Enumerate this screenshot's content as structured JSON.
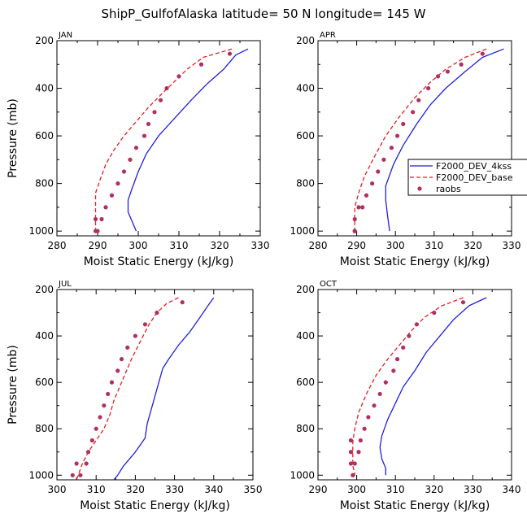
{
  "title": "ShipP_GulfofAlaska  latitude= 50 N longitude= 145 W",
  "legend": {
    "entries": [
      {
        "label": "F2000_DEV_4kss",
        "style": "solid",
        "color": "#1f1fe6"
      },
      {
        "label": "F2000_DEV_base",
        "style": "dashed",
        "color": "#e61f1f"
      },
      {
        "label": "raobs",
        "style": "dots",
        "color": "#b03060"
      }
    ]
  },
  "chart_data": [
    {
      "type": "line",
      "panel": "JAN",
      "xlabel": "Moist Static Energy (kJ/kg)",
      "ylabel": "Pressure (mb)",
      "xlim": [
        280,
        330
      ],
      "ylim": [
        1020,
        200
      ],
      "xticks": [
        280,
        290,
        300,
        310,
        320,
        330
      ],
      "yticks": [
        200,
        400,
        600,
        800,
        1000
      ],
      "series": [
        {
          "name": "F2000_DEV_4kss",
          "style": "solid",
          "x": [
            327,
            324,
            321,
            317,
            313,
            309,
            305,
            302,
            300,
            298.5,
            297.5,
            297.5,
            298.5,
            299.5
          ],
          "y": [
            235,
            260,
            320,
            380,
            450,
            525,
            600,
            675,
            750,
            820,
            870,
            920,
            960,
            1000
          ]
        },
        {
          "name": "F2000_DEV_base",
          "style": "dashed",
          "x": [
            323,
            316,
            312,
            309,
            306,
            302.5,
            299.5,
            296.5,
            294,
            292,
            290.5,
            289.5,
            289.5,
            289.5,
            289.5
          ],
          "y": [
            235,
            270,
            320,
            370,
            420,
            480,
            540,
            600,
            660,
            720,
            790,
            840,
            900,
            960,
            1000
          ]
        },
        {
          "name": "raobs",
          "style": "dots",
          "x": [
            322.5,
            315.5,
            310,
            307,
            305.5,
            304,
            302.5,
            301.5,
            299.5,
            298,
            296.5,
            295,
            293.5,
            292,
            291,
            290,
            289.5,
            289.5
          ],
          "y": [
            255,
            300,
            350,
            400,
            450,
            500,
            550,
            600,
            650,
            700,
            750,
            800,
            850,
            900,
            950,
            1000,
            950,
            1000
          ]
        }
      ]
    },
    {
      "type": "line",
      "panel": "APR",
      "xlabel": "Moist Static Energy (kJ/kg)",
      "ylabel": "",
      "xlim": [
        280,
        330
      ],
      "ylim": [
        1020,
        200
      ],
      "xticks": [
        280,
        290,
        300,
        310,
        320,
        330
      ],
      "yticks": [
        200,
        400,
        600,
        800,
        1000
      ],
      "series": [
        {
          "name": "F2000_DEV_4kss",
          "style": "solid",
          "x": [
            328,
            322.5,
            318,
            313,
            309,
            305.5,
            302,
            299.5,
            297.5,
            297.5,
            298,
            298.5
          ],
          "y": [
            235,
            270,
            330,
            400,
            470,
            550,
            640,
            720,
            810,
            870,
            940,
            1000
          ]
        },
        {
          "name": "F2000_DEV_base",
          "style": "dashed",
          "x": [
            323.5,
            318,
            313,
            309,
            305,
            301,
            297.5,
            294.5,
            292,
            290.5,
            289.5,
            289.5,
            289.5
          ],
          "y": [
            235,
            270,
            320,
            375,
            440,
            520,
            600,
            690,
            770,
            840,
            900,
            960,
            1000
          ]
        },
        {
          "name": "raobs",
          "style": "dots",
          "x": [
            322.5,
            317,
            313.5,
            311,
            308.5,
            306,
            304.5,
            302,
            300.5,
            299,
            297,
            295.5,
            294,
            292.5,
            291.5,
            290.5,
            289.5,
            289.5,
            289.5
          ],
          "y": [
            255,
            300,
            330,
            350,
            400,
            450,
            500,
            550,
            600,
            650,
            700,
            750,
            800,
            850,
            900,
            900,
            950,
            1000,
            1000
          ]
        }
      ]
    },
    {
      "type": "line",
      "panel": "JUL",
      "xlabel": "Moist Static Energy (kJ/kg)",
      "ylabel": "Pressure (mb)",
      "xlim": [
        300,
        350
      ],
      "ylim": [
        1020,
        200
      ],
      "xticks": [
        300,
        310,
        320,
        330,
        340,
        350
      ],
      "yticks": [
        200,
        400,
        600,
        800,
        1000
      ],
      "series": [
        {
          "name": "F2000_DEV_4kss",
          "style": "solid",
          "x": [
            340,
            338.5,
            336.5,
            334,
            331,
            328.5,
            327,
            326,
            325,
            324,
            323,
            322.5,
            320,
            317,
            315.5,
            314.5
          ],
          "y": [
            235,
            270,
            320,
            380,
            440,
            500,
            540,
            600,
            660,
            720,
            780,
            840,
            900,
            960,
            1000,
            1020
          ]
        },
        {
          "name": "F2000_DEV_base",
          "style": "dashed",
          "x": [
            331,
            328,
            325.5,
            323.5,
            322,
            320.5,
            319,
            317.5,
            316,
            314.5,
            313.5,
            312,
            310,
            308,
            306.5,
            305
          ],
          "y": [
            235,
            260,
            300,
            350,
            400,
            450,
            500,
            560,
            620,
            680,
            740,
            800,
            850,
            900,
            950,
            1020
          ]
        },
        {
          "name": "raobs",
          "style": "dots",
          "x": [
            332,
            325.5,
            322.5,
            320,
            318,
            316.5,
            315.5,
            314,
            313,
            312,
            311,
            310,
            309,
            308,
            307.5,
            306,
            305,
            304
          ],
          "y": [
            255,
            300,
            350,
            400,
            450,
            500,
            550,
            600,
            650,
            700,
            750,
            800,
            850,
            900,
            950,
            1000,
            950,
            1000
          ]
        }
      ]
    },
    {
      "type": "line",
      "panel": "OCT",
      "xlabel": "Moist Static Energy (kJ/kg)",
      "ylabel": "",
      "xlim": [
        290,
        340
      ],
      "ylim": [
        1020,
        200
      ],
      "xticks": [
        290,
        300,
        310,
        320,
        330,
        340
      ],
      "yticks": [
        200,
        400,
        600,
        800,
        1000
      ],
      "series": [
        {
          "name": "F2000_DEV_4kss",
          "style": "solid",
          "x": [
            333.5,
            329,
            325,
            321.5,
            318,
            315,
            312,
            310,
            308,
            306.5,
            306,
            306.5,
            307.5,
            307.5
          ],
          "y": [
            235,
            270,
            330,
            400,
            470,
            550,
            620,
            690,
            760,
            830,
            880,
            930,
            970,
            1000
          ]
        },
        {
          "name": "F2000_DEV_base",
          "style": "dashed",
          "x": [
            327.5,
            322,
            317.5,
            314,
            311,
            308,
            305,
            302.5,
            300.5,
            299.5,
            299,
            299,
            299,
            299.5,
            299.5
          ],
          "y": [
            235,
            270,
            320,
            380,
            440,
            500,
            570,
            650,
            730,
            800,
            860,
            910,
            960,
            990,
            1000
          ]
        },
        {
          "name": "raobs",
          "style": "dots",
          "x": [
            327.5,
            320,
            315.5,
            313.5,
            312,
            310.5,
            309.5,
            307.5,
            306,
            304.5,
            303,
            302,
            301,
            300.5,
            299.5,
            299,
            298.5,
            298.5,
            298.5,
            299
          ],
          "y": [
            255,
            300,
            350,
            400,
            450,
            500,
            550,
            600,
            650,
            700,
            750,
            800,
            850,
            900,
            950,
            1000,
            850,
            900,
            950,
            1000
          ]
        }
      ]
    }
  ]
}
